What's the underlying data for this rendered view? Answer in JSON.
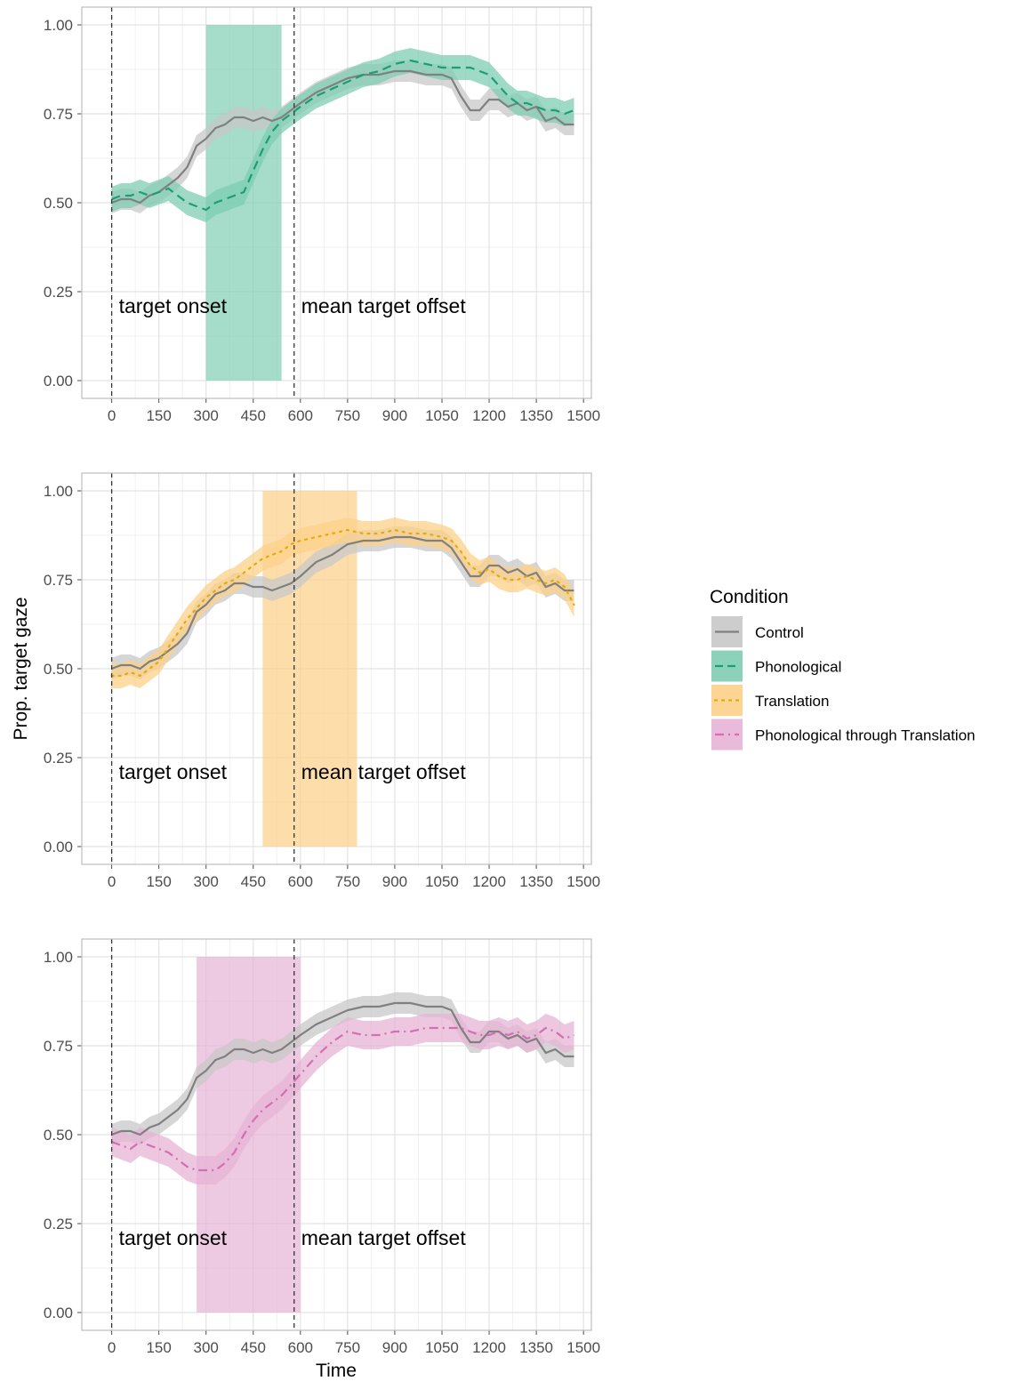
{
  "chart_data": {
    "type": "line",
    "xlabel": "Time",
    "ylabel": "Prop. target gaze",
    "xlim": [
      -95,
      1525
    ],
    "ylim": [
      -0.05,
      1.05
    ],
    "x_ticks": [
      "0",
      "150",
      "300",
      "450",
      "600",
      "750",
      "900",
      "1050",
      "1200",
      "1350",
      "1500"
    ],
    "y_ticks": [
      "0.00",
      "0.25",
      "0.50",
      "0.75",
      "1.00"
    ],
    "grid": true,
    "vlines": [
      {
        "x": 0,
        "label": "target onset"
      },
      {
        "x": 580,
        "label": "mean target offset"
      }
    ],
    "legend": {
      "title": "Condition",
      "placement": "right",
      "entries": [
        {
          "label": "Control",
          "color": "#808080",
          "fill": "#c8c8c8",
          "linestyle": "solid"
        },
        {
          "label": "Phonological",
          "color": "#1b9e77",
          "fill": "#7fcdb3",
          "linestyle": "dashed"
        },
        {
          "label": "Translation",
          "color": "#e6ab02",
          "fill": "#fcd088",
          "linestyle": "dotted"
        },
        {
          "label": "Phonological through Translation",
          "color": "#d36fb0",
          "fill": "#e7b3d6",
          "linestyle": "dashdot"
        }
      ]
    },
    "panels": [
      {
        "condition": "Phonological",
        "highlight": {
          "x_start": 300,
          "x_end": 540
        },
        "series": [
          {
            "name": "Control",
            "x": [
              0,
              30,
              60,
              90,
              120,
              150,
              180,
              210,
              240,
              270,
              300,
              330,
              360,
              390,
              420,
              450,
              480,
              510,
              540,
              570,
              600,
              650,
              700,
              750,
              800,
              850,
              900,
              950,
              1000,
              1050,
              1080,
              1110,
              1140,
              1170,
              1200,
              1230,
              1260,
              1290,
              1320,
              1350,
              1380,
              1410,
              1440,
              1470
            ],
            "y": [
              0.5,
              0.51,
              0.51,
              0.5,
              0.52,
              0.53,
              0.55,
              0.57,
              0.6,
              0.66,
              0.68,
              0.71,
              0.72,
              0.74,
              0.74,
              0.73,
              0.74,
              0.73,
              0.74,
              0.76,
              0.78,
              0.81,
              0.83,
              0.85,
              0.86,
              0.86,
              0.87,
              0.87,
              0.86,
              0.86,
              0.85,
              0.8,
              0.76,
              0.76,
              0.79,
              0.79,
              0.77,
              0.78,
              0.76,
              0.77,
              0.73,
              0.74,
              0.72,
              0.72
            ],
            "ci": 0.03
          },
          {
            "name": "Phonological",
            "x": [
              0,
              30,
              60,
              90,
              120,
              150,
              180,
              210,
              240,
              270,
              300,
              330,
              360,
              390,
              420,
              450,
              480,
              510,
              540,
              570,
              600,
              650,
              700,
              750,
              800,
              850,
              900,
              950,
              1000,
              1050,
              1080,
              1110,
              1140,
              1170,
              1200,
              1230,
              1260,
              1290,
              1320,
              1350,
              1380,
              1410,
              1440,
              1470
            ],
            "y": [
              0.51,
              0.52,
              0.52,
              0.53,
              0.52,
              0.53,
              0.54,
              0.52,
              0.5,
              0.49,
              0.48,
              0.5,
              0.51,
              0.52,
              0.53,
              0.59,
              0.65,
              0.7,
              0.73,
              0.75,
              0.77,
              0.8,
              0.82,
              0.84,
              0.86,
              0.87,
              0.89,
              0.9,
              0.89,
              0.88,
              0.88,
              0.88,
              0.88,
              0.87,
              0.86,
              0.83,
              0.8,
              0.78,
              0.78,
              0.77,
              0.76,
              0.76,
              0.75,
              0.76
            ],
            "ci": 0.035
          }
        ]
      },
      {
        "condition": "Translation",
        "highlight": {
          "x_start": 480,
          "x_end": 780
        },
        "series": [
          {
            "name": "Control",
            "x": [
              0,
              30,
              60,
              90,
              120,
              150,
              180,
              210,
              240,
              270,
              300,
              330,
              360,
              390,
              420,
              450,
              480,
              510,
              540,
              570,
              600,
              650,
              700,
              750,
              800,
              850,
              900,
              950,
              1000,
              1050,
              1080,
              1110,
              1140,
              1170,
              1200,
              1230,
              1260,
              1290,
              1320,
              1350,
              1380,
              1410,
              1440,
              1470
            ],
            "y": [
              0.5,
              0.51,
              0.51,
              0.5,
              0.52,
              0.53,
              0.55,
              0.57,
              0.6,
              0.66,
              0.68,
              0.71,
              0.72,
              0.74,
              0.74,
              0.73,
              0.73,
              0.72,
              0.73,
              0.74,
              0.76,
              0.8,
              0.82,
              0.85,
              0.86,
              0.86,
              0.87,
              0.87,
              0.86,
              0.86,
              0.84,
              0.8,
              0.76,
              0.76,
              0.79,
              0.79,
              0.77,
              0.78,
              0.76,
              0.77,
              0.73,
              0.74,
              0.72,
              0.72
            ],
            "ci": 0.03
          },
          {
            "name": "Translation",
            "x": [
              0,
              30,
              60,
              90,
              120,
              150,
              180,
              210,
              240,
              270,
              300,
              330,
              360,
              390,
              420,
              450,
              480,
              510,
              540,
              570,
              600,
              650,
              700,
              750,
              800,
              850,
              900,
              950,
              1000,
              1050,
              1080,
              1110,
              1140,
              1170,
              1200,
              1230,
              1260,
              1290,
              1320,
              1350,
              1380,
              1410,
              1440,
              1470
            ],
            "y": [
              0.48,
              0.48,
              0.49,
              0.48,
              0.5,
              0.52,
              0.56,
              0.6,
              0.64,
              0.67,
              0.7,
              0.72,
              0.74,
              0.75,
              0.77,
              0.79,
              0.81,
              0.82,
              0.83,
              0.85,
              0.86,
              0.87,
              0.88,
              0.89,
              0.88,
              0.88,
              0.89,
              0.88,
              0.88,
              0.87,
              0.86,
              0.83,
              0.79,
              0.77,
              0.78,
              0.76,
              0.75,
              0.75,
              0.76,
              0.75,
              0.74,
              0.75,
              0.73,
              0.68
            ],
            "ci": 0.035
          }
        ]
      },
      {
        "condition": "Phonological through Translation",
        "highlight": {
          "x_start": 270,
          "x_end": 600
        },
        "series": [
          {
            "name": "Control",
            "x": [
              0,
              30,
              60,
              90,
              120,
              150,
              180,
              210,
              240,
              270,
              300,
              330,
              360,
              390,
              420,
              450,
              480,
              510,
              540,
              570,
              600,
              650,
              700,
              750,
              800,
              850,
              900,
              950,
              1000,
              1050,
              1080,
              1110,
              1140,
              1170,
              1200,
              1230,
              1260,
              1290,
              1320,
              1350,
              1380,
              1410,
              1440,
              1470
            ],
            "y": [
              0.5,
              0.51,
              0.51,
              0.5,
              0.52,
              0.53,
              0.55,
              0.57,
              0.6,
              0.66,
              0.68,
              0.71,
              0.72,
              0.74,
              0.74,
              0.73,
              0.74,
              0.73,
              0.74,
              0.76,
              0.78,
              0.81,
              0.83,
              0.85,
              0.86,
              0.86,
              0.87,
              0.87,
              0.86,
              0.86,
              0.85,
              0.8,
              0.76,
              0.76,
              0.79,
              0.79,
              0.77,
              0.78,
              0.76,
              0.77,
              0.73,
              0.74,
              0.72,
              0.72
            ],
            "ci": 0.03
          },
          {
            "name": "Phonological through Translation",
            "x": [
              0,
              30,
              60,
              90,
              120,
              150,
              180,
              210,
              240,
              270,
              300,
              330,
              360,
              390,
              420,
              450,
              480,
              510,
              540,
              570,
              600,
              650,
              700,
              750,
              800,
              850,
              900,
              950,
              1000,
              1050,
              1080,
              1110,
              1140,
              1170,
              1200,
              1230,
              1260,
              1290,
              1320,
              1350,
              1380,
              1410,
              1440,
              1470
            ],
            "y": [
              0.48,
              0.47,
              0.46,
              0.48,
              0.47,
              0.46,
              0.45,
              0.43,
              0.41,
              0.4,
              0.4,
              0.4,
              0.42,
              0.45,
              0.5,
              0.54,
              0.57,
              0.59,
              0.61,
              0.64,
              0.67,
              0.72,
              0.76,
              0.79,
              0.78,
              0.78,
              0.79,
              0.79,
              0.8,
              0.8,
              0.8,
              0.8,
              0.79,
              0.78,
              0.78,
              0.79,
              0.78,
              0.79,
              0.77,
              0.78,
              0.8,
              0.79,
              0.77,
              0.78
            ],
            "ci": 0.04
          }
        ]
      }
    ]
  }
}
